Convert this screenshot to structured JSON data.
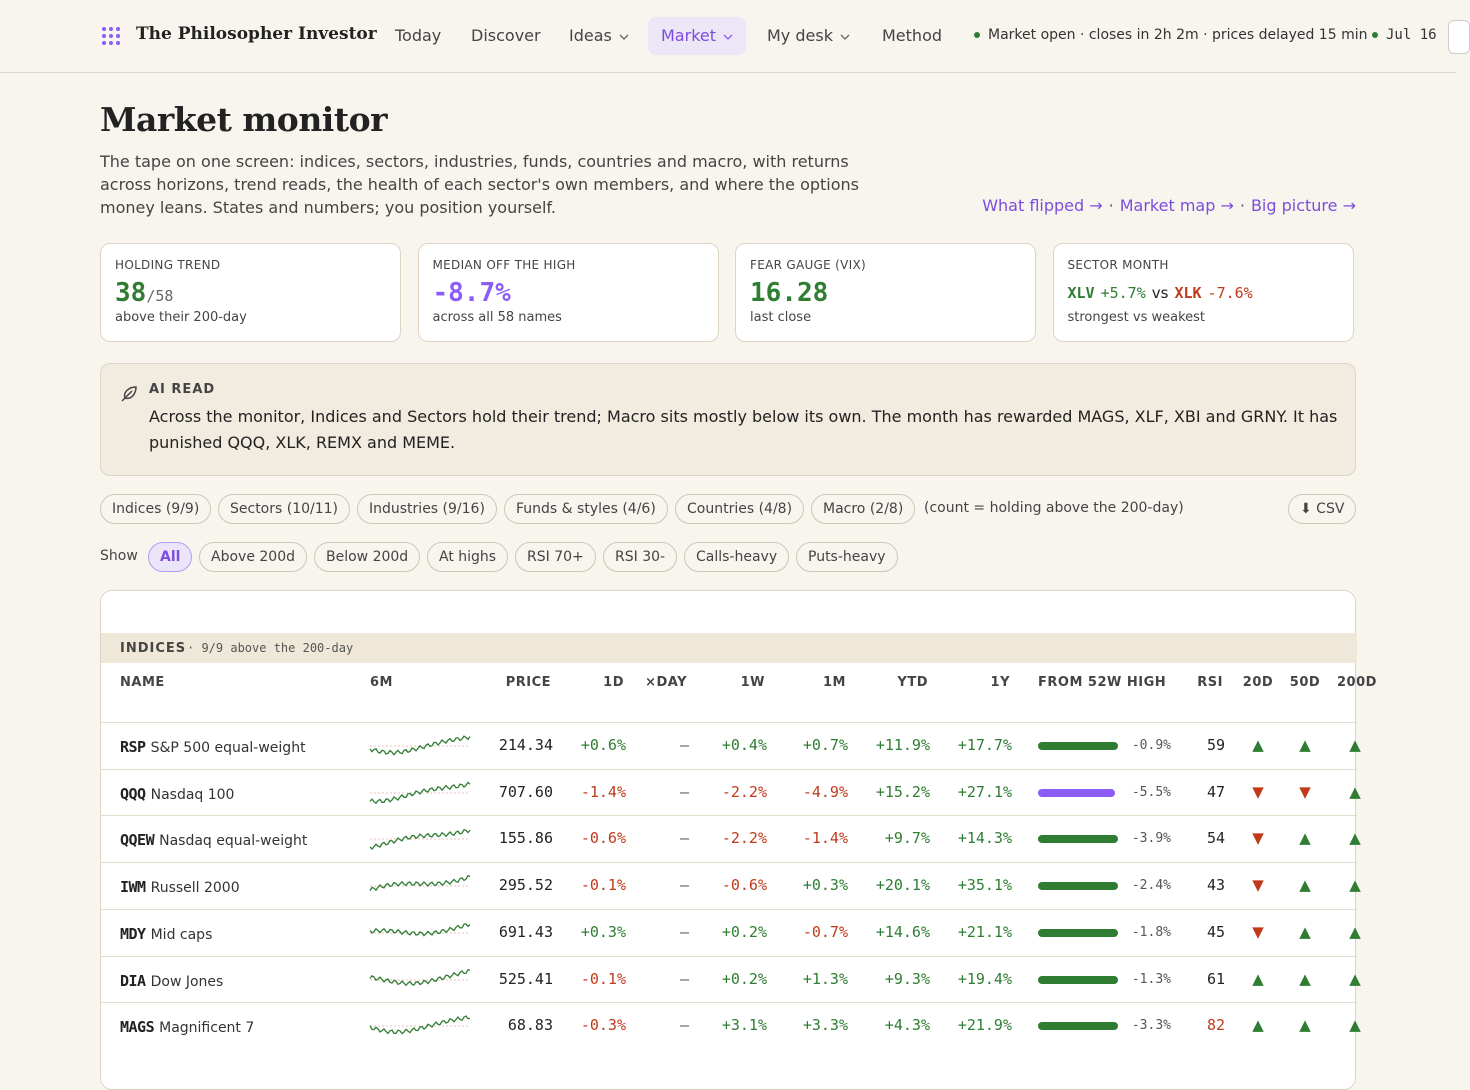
{
  "nav": {
    "brand": "The Philosopher Investor",
    "items": [
      {
        "label": "Today"
      },
      {
        "label": "Discover"
      },
      {
        "label": "Ideas",
        "menu": true
      },
      {
        "label": "Market",
        "menu": true,
        "active": true
      },
      {
        "label": "My desk",
        "menu": true
      },
      {
        "label": "Method"
      }
    ],
    "status": "Market open · closes in 2h 2m · prices delayed 15 min",
    "date": "Jul 16"
  },
  "header": {
    "title": "Market monitor",
    "description": "The tape on one screen: indices, sectors, industries, funds, countries and macro, with returns across horizons, trend reads, the health of each sector's own members, and where the options money leans. States and numbers; you position yourself.",
    "links": [
      "What flipped →",
      "Market map →",
      "Big picture →"
    ],
    "link_separator": "·"
  },
  "cards": [
    {
      "label": "HOLDING TREND",
      "parts": [
        {
          "text": "38",
          "tone": "green",
          "big": true
        },
        {
          "text": "/58",
          "tone": "muted"
        }
      ],
      "note": "above their 200-day"
    },
    {
      "label": "MEDIAN OFF THE HIGH",
      "parts": [
        {
          "text": "-8.7%",
          "tone": "purple",
          "big": true
        }
      ],
      "note": "across all 58 names"
    },
    {
      "label": "FEAR GAUGE (VIX)",
      "parts": [
        {
          "text": "16.28",
          "tone": "green",
          "big": true
        }
      ],
      "note": "last close"
    },
    {
      "label": "SECTOR MONTH",
      "parts": [
        {
          "text": "XLV",
          "tone": "green",
          "strong": true
        },
        {
          "text": "+5.7%",
          "tone": "green"
        },
        {
          "text": "vs",
          "tone": "plain"
        },
        {
          "text": "XLK",
          "tone": "red",
          "strong": true
        },
        {
          "text": "-7.6%",
          "tone": "red"
        }
      ],
      "note": "strongest vs weakest"
    }
  ],
  "ai_read": {
    "label": "AI READ",
    "text": "Across the monitor, Indices and Sectors hold their trend; Macro sits mostly below its own. The month has rewarded MAGS, XLF, XBI and GRNY. It has punished QQQ, XLK, REMX and MEME."
  },
  "groups": {
    "tabs": [
      "Indices (9/9)",
      "Sectors (10/11)",
      "Industries (9/16)",
      "Funds & styles (4/6)",
      "Countries (4/8)",
      "Macro (2/8)"
    ],
    "note": "(count = holding above the 200-day)",
    "export": "⬇ CSV"
  },
  "filters": {
    "label": "Show",
    "chips": [
      "All",
      "Above 200d",
      "Below 200d",
      "At highs",
      "RSI 70+",
      "RSI 30-",
      "Calls-heavy",
      "Puts-heavy"
    ],
    "active": 0
  },
  "table": {
    "section": "INDICES",
    "section_note": "· 9/9 above the 200-day",
    "columns": [
      "NAME",
      "6M",
      "PRICE",
      "1D",
      "×DAY",
      "1W",
      "1M",
      "YTD",
      "1Y",
      "FROM 52W HIGH",
      "RSI",
      "20D",
      "50D",
      "200D"
    ],
    "rows": [
      {
        "ticker": "RSP",
        "name": "S&P 500 equal-weight",
        "price": "214.34",
        "d1": "+0.6%",
        "xday": "—",
        "w1": "+0.4%",
        "m1": "+0.7%",
        "ytd": "+11.9%",
        "y1": "+17.7%",
        "off_high": "-0.9%",
        "bar_color": "#2e7d32",
        "rsi": 59,
        "d20": "▲",
        "d50": "▲",
        "d200": "▲"
      },
      {
        "ticker": "QQQ",
        "name": "Nasdaq 100",
        "price": "707.60",
        "d1": "-1.4%",
        "xday": "—",
        "w1": "-2.2%",
        "m1": "-4.9%",
        "ytd": "+15.2%",
        "y1": "+27.1%",
        "off_high": "-5.5%",
        "bar_color": "#8b5cf6",
        "rsi": 47,
        "d20": "▼",
        "d50": "▼",
        "d200": "▲"
      },
      {
        "ticker": "QQEW",
        "name": "Nasdaq equal-weight",
        "price": "155.86",
        "d1": "-0.6%",
        "xday": "—",
        "w1": "-2.2%",
        "m1": "-1.4%",
        "ytd": "+9.7%",
        "y1": "+14.3%",
        "off_high": "-3.9%",
        "bar_color": "#2e7d32",
        "rsi": 54,
        "d20": "▼",
        "d50": "▲",
        "d200": "▲"
      },
      {
        "ticker": "IWM",
        "name": "Russell 2000",
        "price": "295.52",
        "d1": "-0.1%",
        "xday": "—",
        "w1": "-0.6%",
        "m1": "+0.3%",
        "ytd": "+20.1%",
        "y1": "+35.1%",
        "off_high": "-2.4%",
        "bar_color": "#2e7d32",
        "rsi": 43,
        "d20": "▼",
        "d50": "▲",
        "d200": "▲"
      },
      {
        "ticker": "MDY",
        "name": "Mid caps",
        "price": "691.43",
        "d1": "+0.3%",
        "xday": "—",
        "w1": "+0.2%",
        "m1": "-0.7%",
        "ytd": "+14.6%",
        "y1": "+21.1%",
        "off_high": "-1.8%",
        "bar_color": "#2e7d32",
        "rsi": 45,
        "d20": "▼",
        "d50": "▲",
        "d200": "▲"
      },
      {
        "ticker": "DIA",
        "name": "Dow Jones",
        "price": "525.41",
        "d1": "-0.1%",
        "xday": "—",
        "w1": "+0.2%",
        "m1": "+1.3%",
        "ytd": "+9.3%",
        "y1": "+19.4%",
        "off_high": "-1.3%",
        "bar_color": "#2e7d32",
        "rsi": 61,
        "d20": "▲",
        "d50": "▲",
        "d200": "▲"
      },
      {
        "ticker": "MAGS",
        "name": "Magnificent 7",
        "price": "68.83",
        "d1": "-0.3%",
        "xday": "—",
        "w1": "+3.1%",
        "m1": "+3.3%",
        "ytd": "+4.3%",
        "y1": "+21.9%",
        "off_high": "-3.3%",
        "bar_color": "#2e7d32",
        "rsi": 82,
        "d20": "▲",
        "d50": "▲",
        "d200": "▲"
      }
    ]
  }
}
